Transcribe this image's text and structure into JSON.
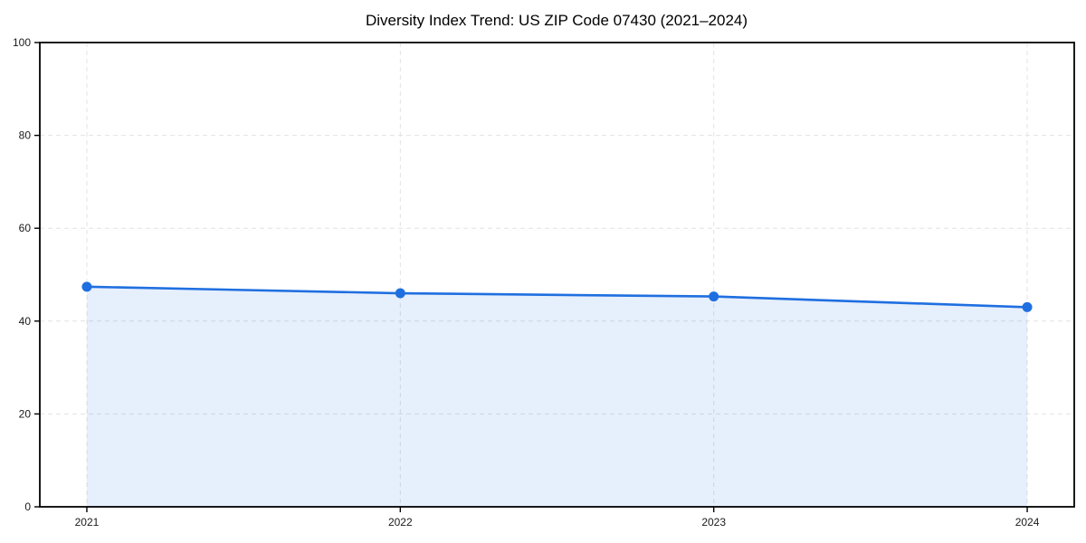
{
  "chart_data": {
    "type": "area",
    "title": "Diversity Index Trend: US ZIP Code 07430 (2021–2024)",
    "x": [
      2021,
      2022,
      2023,
      2024
    ],
    "series": [
      {
        "name": "Diversity Index",
        "values": [
          47.4,
          46.0,
          45.3,
          43.0
        ]
      }
    ],
    "xlabel": "",
    "ylabel": "",
    "xlim": [
      2020.85,
      2024.15
    ],
    "ylim": [
      0,
      100
    ],
    "yticks": [
      0,
      20,
      40,
      60,
      80,
      100
    ],
    "xticks": [
      2021,
      2022,
      2023,
      2024
    ],
    "grid": true,
    "grid_style": "dashed",
    "legend_position": "none",
    "colors": {
      "line": "#1f6fe0",
      "marker": "#1f6fe0",
      "fill": "rgba(31,111,224,0.11)",
      "grid": "#e2e2e2",
      "spine": "#000000",
      "tick_text": "#1a1a1a",
      "background": "#ffffff"
    }
  }
}
